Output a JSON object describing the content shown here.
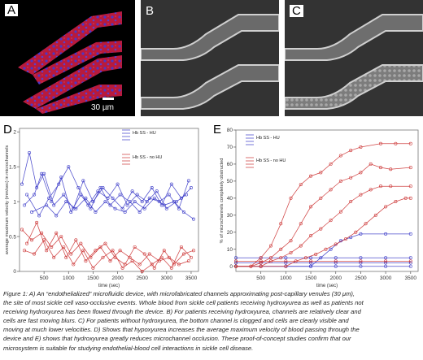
{
  "panels": {
    "a": {
      "label": "A",
      "scale_bar": "30 µm"
    },
    "b": {
      "label": "B"
    },
    "c": {
      "label": "C"
    },
    "d": {
      "label": "D"
    },
    "e": {
      "label": "E"
    }
  },
  "colors": {
    "hu": "#3b3bc8",
    "no_hu": "#cc3333",
    "tissue_red": "#c01a3a",
    "tissue_blue": "#4b37c8"
  },
  "chart_data": [
    {
      "type": "line",
      "panel": "D",
      "xlabel": "time (sec)",
      "ylabel": "average maximum velocity (mm/sec) in microchannels",
      "xticks": [
        500,
        1000,
        1500,
        2000,
        2500,
        3000,
        3500
      ],
      "yticks": [
        0,
        0.5,
        1,
        1.5,
        2
      ],
      "xlim": [
        0,
        3650
      ],
      "ylim": [
        0,
        2.05
      ],
      "legend": [
        {
          "label": "Hb SS - HU",
          "color": "blue"
        },
        {
          "label": "Hb SS - no HU",
          "color": "red"
        }
      ],
      "series": [
        {
          "group": "Hb SS - HU",
          "x": [
            50,
            200,
            350,
            500,
            700,
            900,
            1100,
            1300,
            1500,
            1700,
            1900,
            2100,
            2300,
            2500,
            2700,
            2900,
            3100,
            3300,
            3500
          ],
          "values": [
            1.25,
            1.7,
            1.2,
            1.4,
            0.95,
            1.1,
            0.9,
            1.3,
            1.0,
            1.2,
            1.05,
            0.9,
            1.15,
            1.0,
            1.2,
            0.95,
            1.25,
            1.05,
            1.2
          ]
        },
        {
          "group": "Hb SS - HU",
          "x": [
            100,
            300,
            450,
            650,
            850,
            1050,
            1250,
            1450,
            1650,
            1850,
            2050,
            2250,
            2450,
            2650,
            2850,
            3050,
            3250,
            3450
          ],
          "values": [
            0.95,
            1.1,
            1.4,
            1.0,
            1.35,
            0.85,
            1.1,
            0.9,
            1.2,
            0.95,
            1.1,
            1.0,
            0.85,
            1.05,
            1.0,
            1.1,
            0.9,
            1.3
          ]
        },
        {
          "group": "Hb SS - HU",
          "x": [
            150,
            400,
            600,
            800,
            1000,
            1200,
            1400,
            1600,
            1800,
            2000,
            2200,
            2400,
            2600,
            2800,
            3000,
            3200,
            3400
          ],
          "values": [
            1.1,
            0.8,
            1.05,
            1.25,
            1.5,
            1.2,
            0.95,
            1.15,
            1.05,
            1.25,
            0.95,
            1.1,
            1.0,
            1.15,
            0.9,
            1.0,
            1.1
          ]
        },
        {
          "group": "Hb SS - HU",
          "x": [
            250,
            550,
            750,
            950,
            1150,
            1350,
            1550,
            1750,
            1950,
            2150,
            2350,
            2550,
            2750,
            2950,
            3150,
            3350,
            3550
          ],
          "values": [
            0.85,
            0.95,
            0.8,
            1.0,
            0.9,
            1.05,
            0.85,
            1.0,
            0.9,
            0.85,
            1.0,
            0.9,
            1.05,
            0.95,
            1.0,
            0.85,
            0.75
          ]
        },
        {
          "group": "Hb SS - no HU",
          "x": [
            50,
            250,
            450,
            650,
            850,
            1050,
            1250,
            1450,
            1650,
            1850,
            2050,
            2250,
            2450,
            2650,
            2850,
            3050,
            3250,
            3450
          ],
          "values": [
            0.6,
            0.45,
            0.55,
            0.35,
            0.5,
            0.25,
            0.4,
            0.2,
            0.35,
            0.15,
            0.3,
            0.2,
            0.1,
            0.25,
            0.15,
            0.2,
            0.1,
            0.15
          ]
        },
        {
          "group": "Hb SS - no HU",
          "x": [
            150,
            350,
            550,
            750,
            950,
            1150,
            1350,
            1550,
            1750,
            1950,
            2150,
            2350,
            2550,
            2750,
            2950,
            3150,
            3350,
            3550
          ],
          "values": [
            0.4,
            0.7,
            0.3,
            0.55,
            0.2,
            0.45,
            0.15,
            0.3,
            0.4,
            0.2,
            0.1,
            0.35,
            0.25,
            0.05,
            0.3,
            0.1,
            0.25,
            0.3
          ]
        },
        {
          "group": "Hb SS - no HU",
          "x": [
            100,
            300,
            500,
            700,
            900,
            1100,
            1300,
            1500,
            1700,
            1900,
            2100,
            2300,
            2500,
            2700,
            2900,
            3100,
            3300,
            3500
          ],
          "values": [
            0.3,
            0.25,
            0.45,
            0.2,
            0.35,
            0.1,
            0.3,
            0.05,
            0.2,
            0.3,
            0.05,
            0.15,
            0.0,
            0.1,
            0.2,
            0.05,
            0.35,
            0.2
          ]
        }
      ]
    },
    {
      "type": "line",
      "panel": "E",
      "xlabel": "time (sec)",
      "ylabel": "% of microchannels completely obstructed",
      "xticks": [
        500,
        1000,
        1500,
        2000,
        2500,
        3000,
        3500
      ],
      "yticks": [
        0,
        10,
        20,
        30,
        40,
        50,
        60,
        70,
        80
      ],
      "xlim": [
        0,
        3650
      ],
      "ylim": [
        -3,
        80
      ],
      "legend": [
        {
          "label": "Hb SS - HU",
          "color": "blue"
        },
        {
          "label": "Hb SS - no HU",
          "color": "red"
        }
      ],
      "series": [
        {
          "group": "Hb SS - HU",
          "x": [
            0,
            500,
            1000,
            1500,
            1700,
            1900,
            2100,
            2300,
            2500,
            3000,
            3500
          ],
          "values": [
            0,
            0,
            0,
            0,
            5,
            10,
            15,
            17,
            19,
            19,
            19
          ]
        },
        {
          "group": "Hb SS - HU",
          "x": [
            0,
            500,
            1000,
            1500,
            2000,
            2500,
            3000,
            3500
          ],
          "values": [
            5,
            5,
            5,
            5,
            5,
            5,
            5,
            5
          ]
        },
        {
          "group": "Hb SS - HU",
          "x": [
            0,
            500,
            1000,
            1500,
            2000,
            2500,
            3000,
            3500
          ],
          "values": [
            2,
            2,
            2,
            2,
            2,
            2,
            2,
            2
          ]
        },
        {
          "group": "Hb SS - HU",
          "x": [
            0,
            500,
            1000,
            1500,
            2000,
            2500,
            3000,
            3500
          ],
          "values": [
            0,
            0,
            0,
            0,
            0,
            0,
            0,
            0
          ]
        },
        {
          "group": "Hb SS - no HU",
          "x": [
            0,
            300,
            500,
            700,
            900,
            1100,
            1300,
            1500,
            1700,
            1900,
            2100,
            2300,
            2500,
            2900,
            3200,
            3500
          ],
          "values": [
            0,
            0,
            5,
            12,
            25,
            40,
            48,
            53,
            55,
            60,
            65,
            68,
            70,
            72,
            72,
            72
          ]
        },
        {
          "group": "Hb SS - no HU",
          "x": [
            0,
            300,
            500,
            700,
            900,
            1100,
            1300,
            1500,
            1700,
            1900,
            2100,
            2300,
            2500,
            2700,
            2900,
            3100,
            3500
          ],
          "values": [
            0,
            0,
            2,
            5,
            10,
            15,
            25,
            35,
            40,
            45,
            50,
            52,
            55,
            60,
            58,
            57,
            58
          ]
        },
        {
          "group": "Hb SS - no HU",
          "x": [
            0,
            500,
            700,
            900,
            1100,
            1300,
            1500,
            1700,
            1900,
            2100,
            2300,
            2500,
            2700,
            2900,
            3100,
            3500
          ],
          "values": [
            0,
            0,
            3,
            5,
            8,
            12,
            18,
            22,
            27,
            32,
            38,
            42,
            45,
            47,
            47,
            47
          ]
        },
        {
          "group": "Hb SS - no HU",
          "x": [
            0,
            500,
            1000,
            1200,
            1400,
            1600,
            1800,
            2000,
            2200,
            2400,
            2600,
            2800,
            3000,
            3200,
            3400,
            3500
          ],
          "values": [
            0,
            0,
            0,
            3,
            5,
            7,
            10,
            13,
            16,
            20,
            25,
            30,
            35,
            38,
            40,
            40
          ]
        },
        {
          "group": "Hb SS - no HU",
          "x": [
            0,
            500,
            1000,
            1500,
            2000,
            2500,
            3000,
            3500
          ],
          "values": [
            3,
            3,
            3,
            3,
            3,
            3,
            3,
            3
          ]
        }
      ]
    }
  ],
  "caption": [
    "Figure 1: A) An “endothelialized” microfluidic device, with microfabricated channels approximating post-capillary venules (30 μm),",
    "the site of most sickle cell vaso-occlusive events. Whole blood from sickle cell patients receiving hydroxyurea as well as patients not",
    "receiving hydroxyurea has been flowed through the device. B) For patients receiving hydroxyurea, channels are relatively clear and",
    "cells are fast moving blurs. C) For patients without hydroxyurea, the bottom channel is clogged and cells are clearly visible and",
    "moving at much lower velocities. D) Shows that hypoxyurea increases the average maximum velocity of blood passing through the",
    "device and E) shows that hydroxyurea greatly reduces microchannel occlusion. These proof-of-concept studies confirm that our",
    "microsystem is suitable for studying endothelial-blood cell interactions in sickle cell disease."
  ]
}
